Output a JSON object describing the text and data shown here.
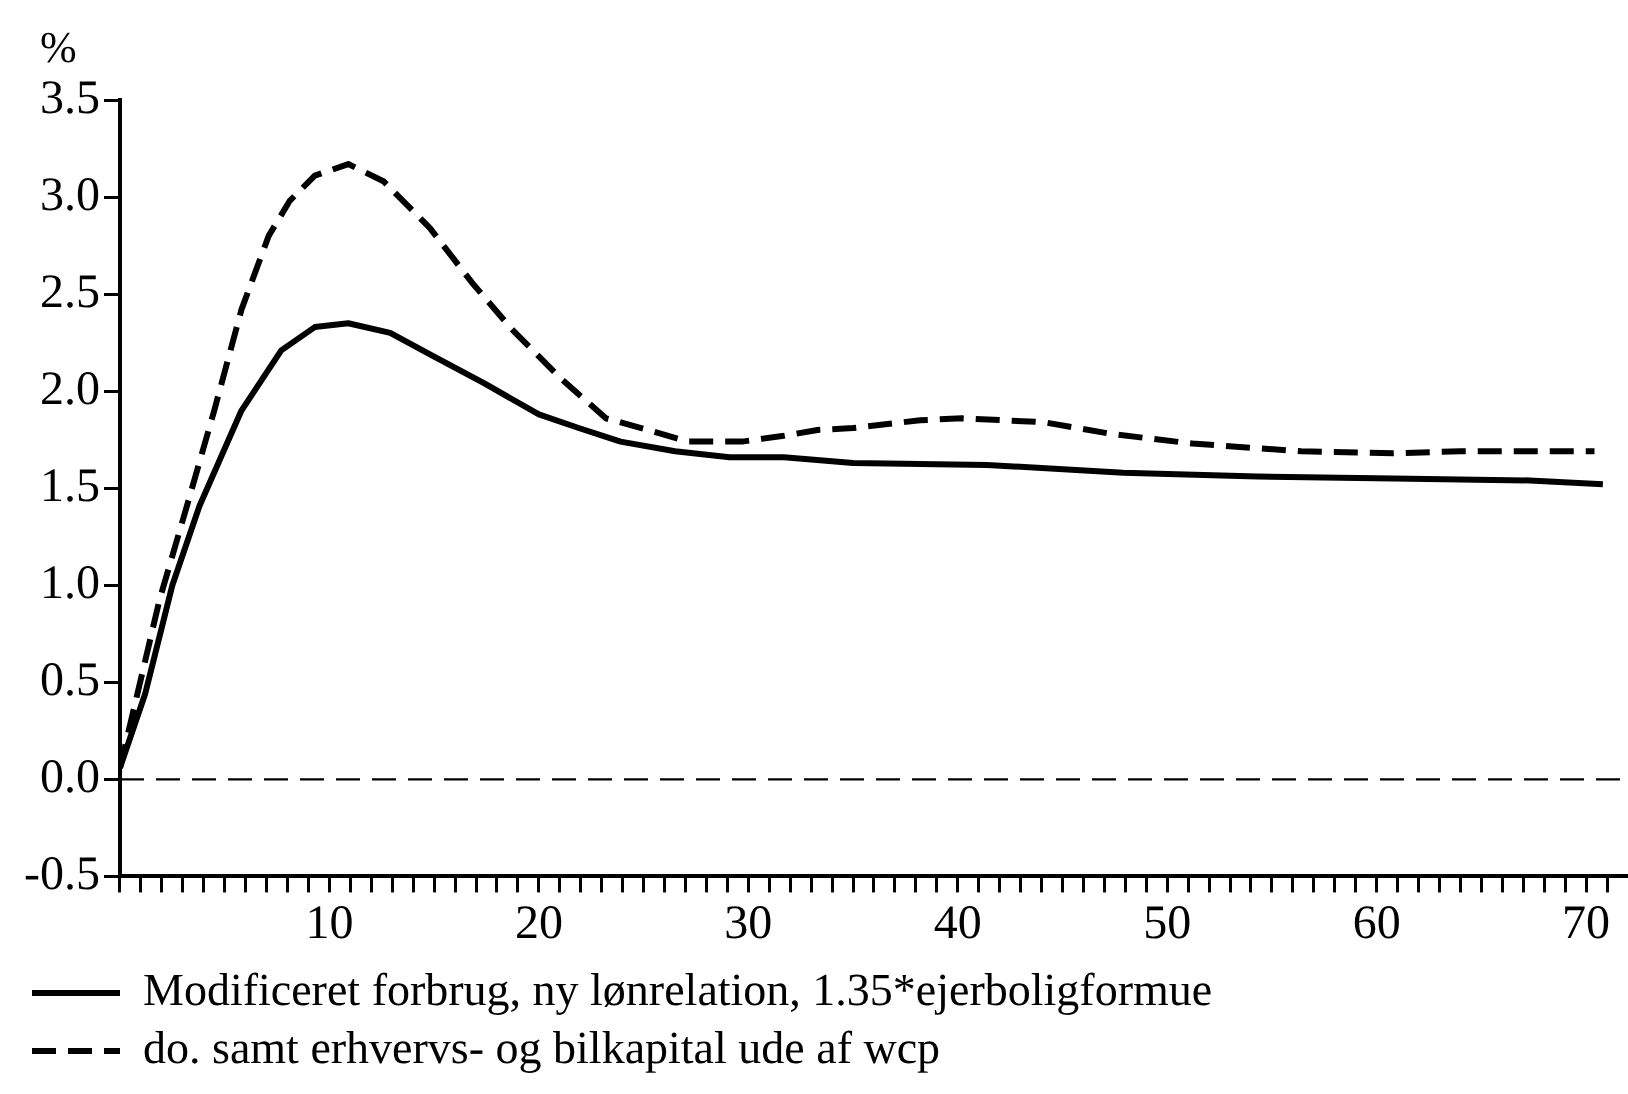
{
  "chart_data": {
    "type": "line",
    "ylabel": "%",
    "legend": "bottom",
    "grid": false,
    "xlim": [
      0,
      72
    ],
    "ylim": [
      -0.5,
      3.5
    ],
    "yticks": [
      {
        "value": -0.5,
        "label": "-0.5"
      },
      {
        "value": 0,
        "label": "0.0"
      },
      {
        "value": 0.5,
        "label": "0.5"
      },
      {
        "value": 1,
        "label": "1.0"
      },
      {
        "value": 1.5,
        "label": "1.5"
      },
      {
        "value": 2,
        "label": "2.0"
      },
      {
        "value": 2.5,
        "label": "2.5"
      },
      {
        "value": 3,
        "label": "3.0"
      },
      {
        "value": 3.5,
        "label": "3.5"
      }
    ],
    "xticks": [
      {
        "value": 0,
        "label": null
      },
      {
        "value": 1,
        "label": null
      },
      {
        "value": 2,
        "label": null
      },
      {
        "value": 3,
        "label": null
      },
      {
        "value": 4,
        "label": null
      },
      {
        "value": 5,
        "label": null
      },
      {
        "value": 6,
        "label": null
      },
      {
        "value": 7,
        "label": null
      },
      {
        "value": 8,
        "label": null
      },
      {
        "value": 9,
        "label": null
      },
      10,
      {
        "value": 11,
        "label": null
      },
      {
        "value": 12,
        "label": null
      },
      {
        "value": 13,
        "label": null
      },
      {
        "value": 14,
        "label": null
      },
      {
        "value": 15,
        "label": null
      },
      {
        "value": 16,
        "label": null
      },
      {
        "value": 17,
        "label": null
      },
      {
        "value": 18,
        "label": null
      },
      {
        "value": 19,
        "label": null
      },
      20,
      {
        "value": 21,
        "label": null
      },
      {
        "value": 22,
        "label": null
      },
      {
        "value": 23,
        "label": null
      },
      {
        "value": 24,
        "label": null
      },
      {
        "value": 25,
        "label": null
      },
      {
        "value": 26,
        "label": null
      },
      {
        "value": 27,
        "label": null
      },
      {
        "value": 28,
        "label": null
      },
      {
        "value": 29,
        "label": null
      },
      30,
      {
        "value": 31,
        "label": null
      },
      {
        "value": 32,
        "label": null
      },
      {
        "value": 33,
        "label": null
      },
      {
        "value": 34,
        "label": null
      },
      {
        "value": 35,
        "label": null
      },
      {
        "value": 36,
        "label": null
      },
      {
        "value": 37,
        "label": null
      },
      {
        "value": 38,
        "label": null
      },
      {
        "value": 39,
        "label": null
      },
      40,
      {
        "value": 41,
        "label": null
      },
      {
        "value": 42,
        "label": null
      },
      {
        "value": 43,
        "label": null
      },
      {
        "value": 44,
        "label": null
      },
      {
        "value": 45,
        "label": null
      },
      {
        "value": 46,
        "label": null
      },
      {
        "value": 47,
        "label": null
      },
      {
        "value": 48,
        "label": null
      },
      {
        "value": 49,
        "label": null
      },
      50,
      {
        "value": 51,
        "label": null
      },
      {
        "value": 52,
        "label": null
      },
      {
        "value": 53,
        "label": null
      },
      {
        "value": 54,
        "label": null
      },
      {
        "value": 55,
        "label": null
      },
      {
        "value": 56,
        "label": null
      },
      {
        "value": 57,
        "label": null
      },
      {
        "value": 58,
        "label": null
      },
      {
        "value": 59,
        "label": null
      },
      60,
      {
        "value": 61,
        "label": null
      },
      {
        "value": 62,
        "label": null
      },
      {
        "value": 63,
        "label": null
      },
      {
        "value": 64,
        "label": null
      },
      {
        "value": 65,
        "label": null
      },
      {
        "value": 66,
        "label": null
      },
      {
        "value": 67,
        "label": null
      },
      {
        "value": 68,
        "label": null
      },
      {
        "value": 69,
        "label": null
      },
      70,
      {
        "value": 71,
        "label": null
      }
    ],
    "ref_lines": [
      {
        "axis": "y",
        "value": 0,
        "line_style": "dashed",
        "color": "#000000"
      }
    ],
    "series": [
      {
        "name": "Modificeret forbrug, ny lønrelation, 1.35*ejerboligformue",
        "color": "#000000",
        "line_style": "solid",
        "x": [
          0,
          1.2,
          2.5,
          3.8,
          5.8,
          7.7,
          9.3,
          10.9,
          12.9,
          14.8,
          17.4,
          20,
          21.9,
          23.9,
          26.5,
          29.1,
          31.7,
          35,
          41.4,
          47.9,
          54.3,
          60.8,
          67.3,
          70.8
        ],
        "values": [
          0.06,
          0.44,
          1.0,
          1.41,
          1.9,
          2.21,
          2.33,
          2.35,
          2.3,
          2.19,
          2.04,
          1.88,
          1.81,
          1.74,
          1.69,
          1.66,
          1.66,
          1.63,
          1.62,
          1.58,
          1.56,
          1.55,
          1.54,
          1.52
        ]
      },
      {
        "name": "do. samt erhvervs- og bilkapital ude af wcp",
        "color": "#000000",
        "line_style": "dashed",
        "x": [
          0,
          1.9,
          3.2,
          4.5,
          5.8,
          7.1,
          8.1,
          9.3,
          10.9,
          12.6,
          14.8,
          16.8,
          18.7,
          21,
          23.2,
          25.2,
          27.1,
          29.7,
          31.7,
          33.3,
          35,
          38.2,
          40.2,
          44.1,
          47.3,
          51.2,
          56.4,
          60.8,
          64,
          70.4
        ],
        "values": [
          0.06,
          0.93,
          1.41,
          1.9,
          2.42,
          2.8,
          2.98,
          3.11,
          3.17,
          3.08,
          2.84,
          2.56,
          2.32,
          2.07,
          1.86,
          1.8,
          1.74,
          1.74,
          1.77,
          1.8,
          1.81,
          1.85,
          1.86,
          1.84,
          1.78,
          1.73,
          1.69,
          1.68,
          1.69,
          1.69
        ]
      }
    ]
  }
}
